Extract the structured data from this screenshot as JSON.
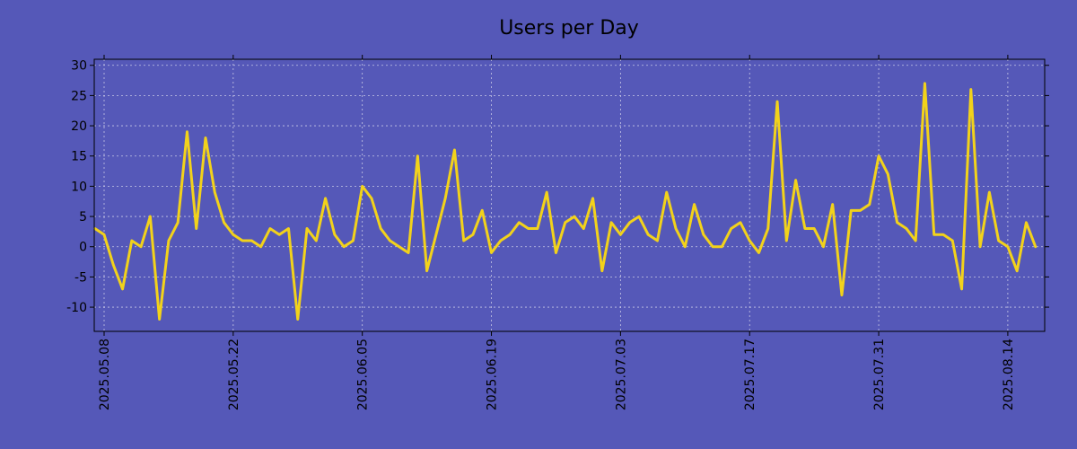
{
  "chart_data": {
    "type": "line",
    "title": "Users per Day",
    "xlabel": "",
    "ylabel": "",
    "x_start": "2025-05-08",
    "x_end": "2025-08-18",
    "ylim": [
      -14,
      31
    ],
    "yticks": [
      -10,
      -5,
      0,
      5,
      10,
      15,
      20,
      25,
      30
    ],
    "xticks": [
      "2025.05.08",
      "2025.05.22",
      "2025.06.05",
      "2025.06.19",
      "2025.07.03",
      "2025.07.17",
      "2025.07.31",
      "2025.08.14"
    ],
    "grid": true,
    "series": [
      {
        "name": "Users",
        "color": "#f2d21b",
        "values": [
          3,
          2,
          -3,
          -7,
          1,
          0,
          5,
          -12,
          1,
          4,
          19,
          3,
          18,
          9,
          4,
          2,
          1,
          1,
          0,
          3,
          2,
          3,
          -12,
          3,
          1,
          8,
          2,
          0,
          1,
          10,
          8,
          3,
          1,
          0,
          -1,
          15,
          -4,
          2,
          8,
          16,
          1,
          2,
          6,
          -1,
          1,
          2,
          4,
          3,
          3,
          9,
          -1,
          4,
          5,
          3,
          8,
          -4,
          4,
          2,
          4,
          5,
          2,
          1,
          9,
          3,
          0,
          7,
          2,
          0,
          0,
          3,
          4,
          1,
          -1,
          3,
          24,
          1,
          11,
          3,
          3,
          0,
          7,
          -8,
          6,
          6,
          7,
          15,
          12,
          4,
          3,
          1,
          27,
          2,
          2,
          1,
          -7,
          26,
          0,
          9,
          1,
          0,
          -4,
          4,
          0
        ]
      }
    ]
  }
}
